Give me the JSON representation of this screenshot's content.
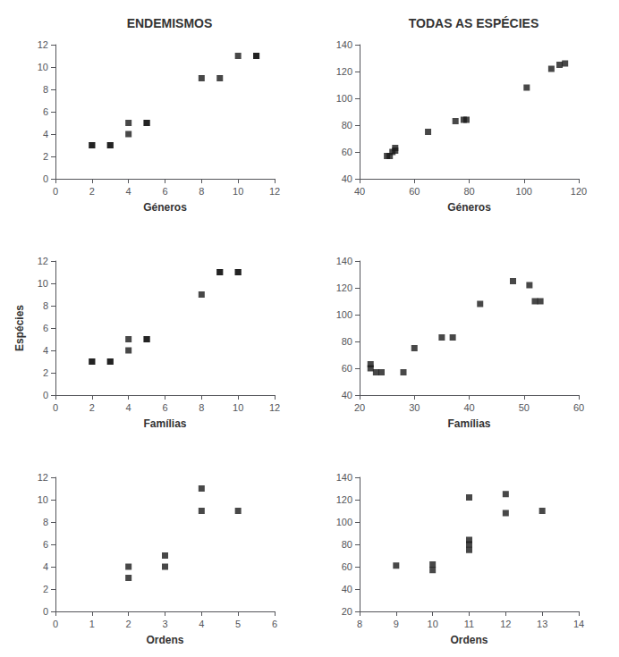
{
  "chart_data": [
    {
      "type": "scatter",
      "title": "ENDEMISMOS",
      "xlabel": "Géneros",
      "x": [
        2,
        2,
        3,
        3,
        4,
        4,
        5,
        5,
        8,
        9,
        10,
        11,
        11
      ],
      "values": [
        3,
        3,
        3,
        3,
        4,
        5,
        5,
        5,
        9,
        9,
        11,
        11,
        11
      ],
      "xlim": [
        0,
        12
      ],
      "ylim": [
        0,
        12
      ],
      "xticks": [
        0,
        2,
        4,
        6,
        8,
        10,
        12
      ],
      "yticks": [
        0,
        2,
        4,
        6,
        8,
        10,
        12
      ],
      "color": "#1a1a1a",
      "marker": "square",
      "grid": false
    },
    {
      "type": "scatter",
      "title": "TODAS AS ESPÉCIES",
      "xlabel": "Géneros",
      "x": [
        50,
        51,
        52,
        53,
        53,
        65,
        75,
        78,
        79,
        101,
        110,
        113,
        115
      ],
      "values": [
        57,
        57,
        60,
        61,
        63,
        75,
        83,
        84,
        84,
        108,
        122,
        125,
        126
      ],
      "xlim": [
        40,
        120
      ],
      "ylim": [
        40,
        140
      ],
      "xticks": [
        40,
        60,
        80,
        100,
        120
      ],
      "yticks": [
        40,
        60,
        80,
        100,
        120,
        140
      ],
      "color": "#1a1a1a",
      "marker": "square",
      "grid": false
    },
    {
      "type": "scatter",
      "xlabel": "Famílias",
      "ylabel": "Espécies",
      "x": [
        2,
        2,
        3,
        3,
        4,
        4,
        5,
        5,
        8,
        9,
        9,
        10,
        10
      ],
      "values": [
        3,
        3,
        3,
        3,
        4,
        5,
        5,
        5,
        9,
        11,
        11,
        11,
        11
      ],
      "xlim": [
        0,
        12
      ],
      "ylim": [
        0,
        12
      ],
      "xticks": [
        0,
        2,
        4,
        6,
        8,
        10,
        12
      ],
      "yticks": [
        0,
        2,
        4,
        6,
        8,
        10,
        12
      ],
      "color": "#1a1a1a",
      "marker": "square",
      "grid": false
    },
    {
      "type": "scatter",
      "xlabel": "Famílias",
      "x": [
        22,
        22,
        23,
        24,
        28,
        30,
        35,
        37,
        42,
        48,
        51,
        52,
        53
      ],
      "values": [
        60,
        63,
        57,
        57,
        57,
        75,
        83,
        83,
        108,
        125,
        122,
        110,
        110
      ],
      "xlim": [
        20,
        60
      ],
      "ylim": [
        40,
        140
      ],
      "xticks": [
        20,
        30,
        40,
        50,
        60
      ],
      "yticks": [
        40,
        60,
        80,
        100,
        120,
        140
      ],
      "color": "#1a1a1a",
      "marker": "square",
      "grid": false
    },
    {
      "type": "scatter",
      "xlabel": "Ordens",
      "x": [
        2,
        2,
        3,
        3,
        4,
        4,
        5
      ],
      "values": [
        4,
        3,
        5,
        4,
        11,
        9,
        9
      ],
      "xlim": [
        0,
        6
      ],
      "ylim": [
        0,
        12
      ],
      "xticks": [
        0,
        1,
        2,
        3,
        4,
        5,
        6
      ],
      "yticks": [
        0,
        2,
        4,
        6,
        8,
        10,
        12
      ],
      "color": "#1a1a1a",
      "marker": "square",
      "grid": false
    },
    {
      "type": "scatter",
      "xlabel": "Ordens",
      "x": [
        9,
        10,
        10,
        11,
        11,
        11,
        11,
        12,
        12,
        13
      ],
      "values": [
        61,
        62,
        57,
        84,
        80,
        75,
        122,
        125,
        108,
        110
      ],
      "xlim": [
        8,
        14
      ],
      "ylim": [
        20,
        140
      ],
      "xticks": [
        8,
        9,
        10,
        11,
        12,
        13,
        14
      ],
      "yticks": [
        20,
        40,
        60,
        80,
        100,
        120,
        140
      ],
      "color": "#1a1a1a",
      "marker": "square",
      "grid": false
    }
  ]
}
